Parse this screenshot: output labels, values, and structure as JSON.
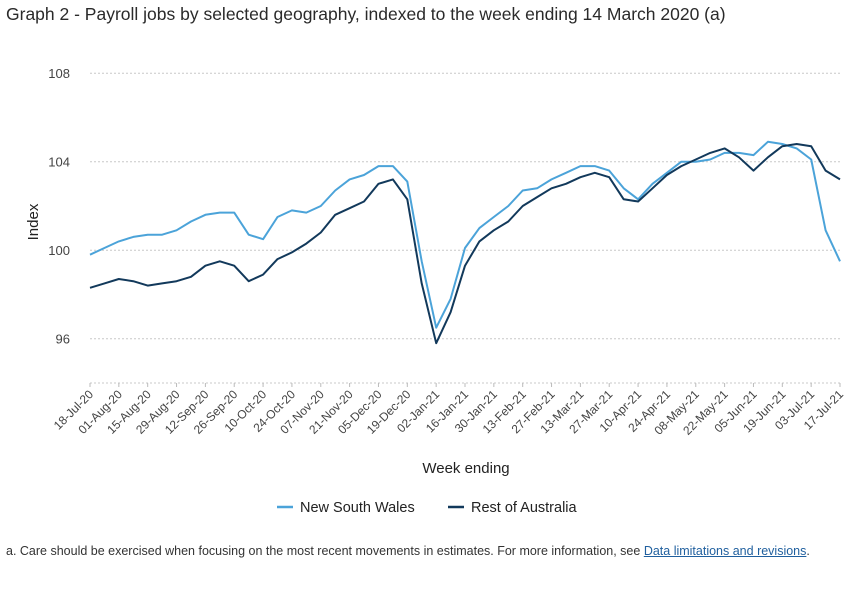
{
  "title": "Graph 2 - Payroll jobs by selected geography, indexed to the week ending 14 March 2020 (a)",
  "footnote": {
    "text": "a. Care should be exercised when focusing on the most recent movements in estimates. For more information, see ",
    "link_text": "Data limitations and revisions",
    "end": "."
  },
  "chart_data": {
    "type": "line",
    "xlabel": "Week ending",
    "ylabel": "Index",
    "ylim": [
      94,
      109.5
    ],
    "yticks": [
      96,
      100,
      104,
      108
    ],
    "grid": "horizontal dashed",
    "legend_position": "bottom",
    "colors": {
      "New South Wales": "#4ba3d9",
      "Rest of Australia": "#12395b"
    },
    "x": [
      "18-Jul-20",
      "25-Jul-20",
      "01-Aug-20",
      "08-Aug-20",
      "15-Aug-20",
      "22-Aug-20",
      "29-Aug-20",
      "05-Sep-20",
      "12-Sep-20",
      "19-Sep-20",
      "26-Sep-20",
      "03-Oct-20",
      "10-Oct-20",
      "17-Oct-20",
      "24-Oct-20",
      "31-Oct-20",
      "07-Nov-20",
      "14-Nov-20",
      "21-Nov-20",
      "28-Nov-20",
      "05-Dec-20",
      "12-Dec-20",
      "19-Dec-20",
      "26-Dec-20",
      "02-Jan-21",
      "09-Jan-21",
      "16-Jan-21",
      "23-Jan-21",
      "30-Jan-21",
      "06-Feb-21",
      "13-Feb-21",
      "20-Feb-21",
      "27-Feb-21",
      "06-Mar-21",
      "13-Mar-21",
      "20-Mar-21",
      "27-Mar-21",
      "03-Apr-21",
      "10-Apr-21",
      "17-Apr-21",
      "24-Apr-21",
      "01-May-21",
      "08-May-21",
      "15-May-21",
      "22-May-21",
      "29-May-21",
      "05-Jun-21",
      "12-Jun-21",
      "19-Jun-21",
      "26-Jun-21",
      "03-Jul-21",
      "10-Jul-21",
      "17-Jul-21"
    ],
    "xticks": [
      "18-Jul-20",
      "01-Aug-20",
      "15-Aug-20",
      "29-Aug-20",
      "12-Sep-20",
      "26-Sep-20",
      "10-Oct-20",
      "24-Oct-20",
      "07-Nov-20",
      "21-Nov-20",
      "05-Dec-20",
      "19-Dec-20",
      "02-Jan-21",
      "16-Jan-21",
      "30-Jan-21",
      "13-Feb-21",
      "27-Feb-21",
      "13-Mar-21",
      "27-Mar-21",
      "10-Apr-21",
      "24-Apr-21",
      "08-May-21",
      "22-May-21",
      "05-Jun-21",
      "19-Jun-21",
      "03-Jul-21",
      "17-Jul-21"
    ],
    "series": [
      {
        "name": "New South Wales",
        "values": [
          99.8,
          100.1,
          100.4,
          100.6,
          100.7,
          100.7,
          100.9,
          101.3,
          101.6,
          101.7,
          101.7,
          100.7,
          100.5,
          101.5,
          101.8,
          101.7,
          102.0,
          102.7,
          103.2,
          103.4,
          103.8,
          103.8,
          103.1,
          99.5,
          96.5,
          97.8,
          100.1,
          101.0,
          101.5,
          102.0,
          102.7,
          102.8,
          103.2,
          103.5,
          103.8,
          103.8,
          103.6,
          102.8,
          102.3,
          103.0,
          103.5,
          104.0,
          104.0,
          104.1,
          104.4,
          104.4,
          104.3,
          104.9,
          104.8,
          104.6,
          104.1,
          100.9,
          99.5
        ]
      },
      {
        "name": "Rest of Australia",
        "values": [
          98.3,
          98.5,
          98.7,
          98.6,
          98.4,
          98.5,
          98.6,
          98.8,
          99.3,
          99.5,
          99.3,
          98.6,
          98.9,
          99.6,
          99.9,
          100.3,
          100.8,
          101.6,
          101.9,
          102.2,
          103.0,
          103.2,
          102.3,
          98.5,
          95.8,
          97.2,
          99.3,
          100.4,
          100.9,
          101.3,
          102.0,
          102.4,
          102.8,
          103.0,
          103.3,
          103.5,
          103.3,
          102.3,
          102.2,
          102.8,
          103.4,
          103.8,
          104.1,
          104.4,
          104.6,
          104.2,
          103.6,
          104.2,
          104.7,
          104.8,
          104.7,
          103.6,
          103.2
        ]
      }
    ]
  }
}
